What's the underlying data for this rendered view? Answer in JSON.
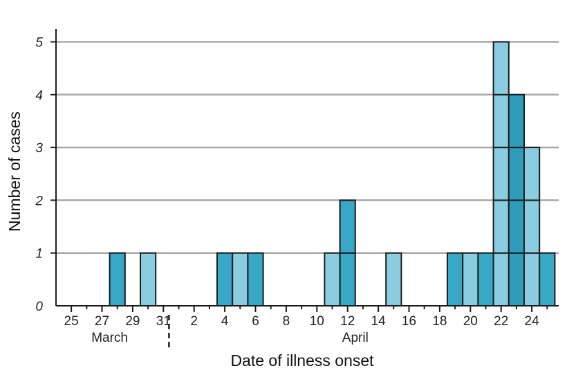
{
  "chart_data": {
    "type": "bar",
    "title": "",
    "xlabel": "Date of illness onset",
    "ylabel": "Number of cases",
    "ylim": [
      0,
      5
    ],
    "yticks": [
      0,
      1,
      2,
      3,
      4,
      5
    ],
    "grid": "horizontal",
    "x_range": [
      "March 25",
      "April 26"
    ],
    "x_tick_labels": [
      {
        "date": "March 25",
        "label": "25"
      },
      {
        "date": "March 27",
        "label": "27"
      },
      {
        "date": "March 29",
        "label": "29"
      },
      {
        "date": "March 31",
        "label": "31"
      },
      {
        "date": "April 2",
        "label": "2"
      },
      {
        "date": "April 4",
        "label": "4"
      },
      {
        "date": "April 6",
        "label": "6"
      },
      {
        "date": "April 8",
        "label": "8"
      },
      {
        "date": "April 10",
        "label": "10"
      },
      {
        "date": "April 12",
        "label": "12"
      },
      {
        "date": "April 14",
        "label": "14"
      },
      {
        "date": "April 16",
        "label": "16"
      },
      {
        "date": "April 18",
        "label": "18"
      },
      {
        "date": "April 20",
        "label": "20"
      },
      {
        "date": "April 22",
        "label": "22"
      },
      {
        "date": "April 24",
        "label": "24"
      }
    ],
    "month_labels": [
      {
        "label": "March",
        "center_date": "March 28"
      },
      {
        "label": "April",
        "center_date": "April 13"
      }
    ],
    "month_divider_after": "March 31",
    "colors": {
      "dark": "#39a7c6",
      "light": "#8acde0",
      "darker": "#2f9cbc",
      "stroke": "#1b1b1b",
      "grid": "#a8a8a8"
    },
    "bars": [
      {
        "date": "March 28",
        "value": 1,
        "shade": "dark"
      },
      {
        "date": "March 30",
        "value": 1,
        "shade": "light"
      },
      {
        "date": "April 4",
        "value": 1,
        "shade": "dark"
      },
      {
        "date": "April 5",
        "value": 1,
        "shade": "light"
      },
      {
        "date": "April 6",
        "value": 1,
        "shade": "dark"
      },
      {
        "date": "April 11",
        "value": 1,
        "shade": "light"
      },
      {
        "date": "April 12",
        "value": 2,
        "shade": "dark"
      },
      {
        "date": "April 15",
        "value": 1,
        "shade": "light"
      },
      {
        "date": "April 19",
        "value": 1,
        "shade": "dark"
      },
      {
        "date": "April 20",
        "value": 1,
        "shade": "light"
      },
      {
        "date": "April 21",
        "value": 1,
        "shade": "dark"
      },
      {
        "date": "April 22",
        "value": 5,
        "shade": "light"
      },
      {
        "date": "April 23",
        "value": 4,
        "shade": "darker"
      },
      {
        "date": "April 24",
        "value": 3,
        "shade": "light"
      },
      {
        "date": "April 25",
        "value": 1,
        "shade": "dark"
      }
    ]
  }
}
